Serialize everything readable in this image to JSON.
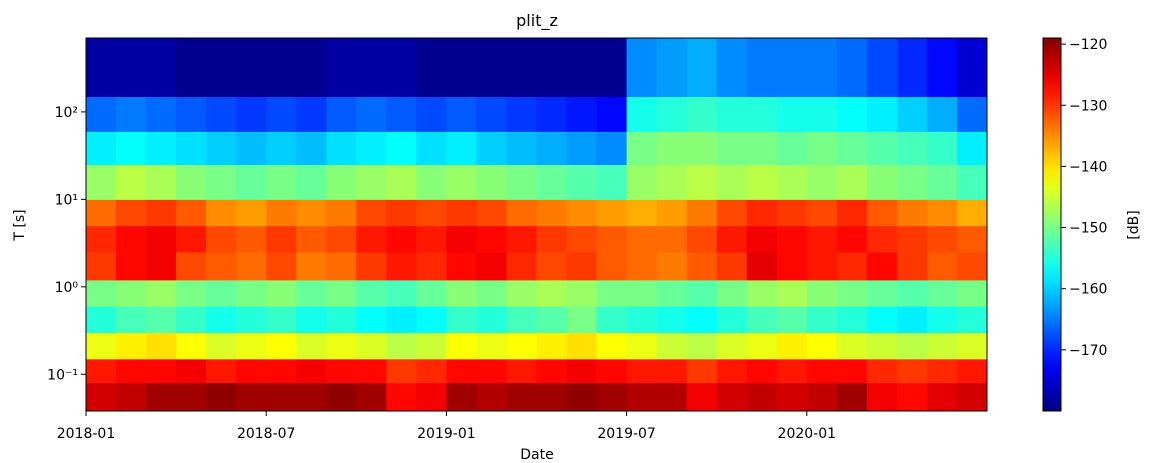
{
  "chart_data": {
    "type": "heatmap",
    "title": "plit_z",
    "x_label": "Date",
    "y_label": "T [s]",
    "x": [
      "2018-01",
      "2018-02",
      "2018-03",
      "2018-04",
      "2018-05",
      "2018-06",
      "2018-07",
      "2018-08",
      "2018-09",
      "2018-10",
      "2018-11",
      "2018-12",
      "2019-01",
      "2019-02",
      "2019-03",
      "2019-04",
      "2019-05",
      "2019-06",
      "2019-07",
      "2019-08",
      "2019-09",
      "2019-10",
      "2019-11",
      "2019-12",
      "2020-01",
      "2020-02",
      "2020-03",
      "2020-04",
      "2020-05",
      "2020-06"
    ],
    "y_edges": [
      0.038,
      0.08,
      0.15,
      0.3,
      0.6,
      1.2,
      2.5,
      5,
      10,
      25,
      60,
      150,
      700
    ],
    "values": [
      [
        -124,
        -123,
        -121,
        -121,
        -120,
        -121,
        -121,
        -121,
        -120,
        -121,
        -127,
        -126,
        -121,
        -122,
        -121,
        -121,
        -120,
        -121,
        -122,
        -122,
        -126,
        -124,
        -123,
        -124,
        -123,
        -121,
        -126,
        -127,
        -125,
        -124
      ],
      [
        -128,
        -127,
        -127,
        -126,
        -128,
        -127,
        -127,
        -126,
        -127,
        -127,
        -130,
        -129,
        -127,
        -127,
        -128,
        -127,
        -126,
        -127,
        -128,
        -128,
        -130,
        -128,
        -127,
        -128,
        -127,
        -127,
        -129,
        -130,
        -129,
        -128
      ],
      [
        -143,
        -141,
        -140,
        -142,
        -144,
        -143,
        -142,
        -144,
        -143,
        -144,
        -146,
        -145,
        -142,
        -143,
        -142,
        -141,
        -140,
        -142,
        -143,
        -145,
        -146,
        -144,
        -143,
        -141,
        -142,
        -144,
        -145,
        -146,
        -145,
        -144
      ],
      [
        -155,
        -153,
        -152,
        -154,
        -156,
        -155,
        -154,
        -156,
        -155,
        -157,
        -158,
        -157,
        -154,
        -155,
        -153,
        -152,
        -150,
        -154,
        -155,
        -156,
        -157,
        -155,
        -153,
        -152,
        -154,
        -155,
        -157,
        -158,
        -156,
        -155
      ],
      [
        -150,
        -149,
        -148,
        -150,
        -151,
        -150,
        -149,
        -151,
        -150,
        -152,
        -153,
        -151,
        -149,
        -150,
        -148,
        -147,
        -148,
        -150,
        -150,
        -151,
        -152,
        -150,
        -148,
        -147,
        -149,
        -150,
        -151,
        -152,
        -151,
        -150
      ],
      [
        -130,
        -127,
        -126,
        -131,
        -132,
        -133,
        -131,
        -134,
        -133,
        -130,
        -128,
        -129,
        -127,
        -126,
        -129,
        -131,
        -130,
        -132,
        -133,
        -134,
        -132,
        -130,
        -125,
        -127,
        -128,
        -129,
        -127,
        -130,
        -132,
        -131
      ],
      [
        -129,
        -127,
        -126,
        -128,
        -131,
        -132,
        -130,
        -132,
        -131,
        -128,
        -127,
        -128,
        -126,
        -127,
        -128,
        -130,
        -131,
        -132,
        -133,
        -133,
        -131,
        -128,
        -126,
        -127,
        -128,
        -127,
        -129,
        -130,
        -131,
        -132
      ],
      [
        -133,
        -131,
        -130,
        -132,
        -135,
        -136,
        -134,
        -135,
        -134,
        -131,
        -130,
        -131,
        -130,
        -131,
        -133,
        -134,
        -135,
        -136,
        -137,
        -136,
        -134,
        -131,
        -129,
        -130,
        -131,
        -129,
        -132,
        -134,
        -135,
        -137
      ],
      [
        -148,
        -146,
        -147,
        -149,
        -150,
        -151,
        -150,
        -151,
        -149,
        -148,
        -147,
        -149,
        -148,
        -149,
        -150,
        -151,
        -152,
        -153,
        -148,
        -147,
        -146,
        -147,
        -146,
        -147,
        -148,
        -147,
        -149,
        -150,
        -151,
        -153
      ],
      [
        -158,
        -157,
        -158,
        -159,
        -160,
        -161,
        -160,
        -161,
        -159,
        -158,
        -157,
        -159,
        -158,
        -160,
        -161,
        -162,
        -163,
        -164,
        -150,
        -149,
        -149,
        -150,
        -150,
        -151,
        -150,
        -151,
        -152,
        -153,
        -154,
        -158
      ],
      [
        -166,
        -165,
        -166,
        -167,
        -168,
        -169,
        -168,
        -169,
        -167,
        -166,
        -167,
        -168,
        -167,
        -168,
        -169,
        -170,
        -171,
        -172,
        -156,
        -155,
        -154,
        -155,
        -155,
        -156,
        -156,
        -157,
        -158,
        -160,
        -162,
        -166
      ],
      [
        -178,
        -178,
        -178,
        -179,
        -179,
        -179,
        -179,
        -179,
        -178,
        -178,
        -178,
        -179,
        -179,
        -179,
        -179,
        -179,
        -179,
        -179,
        -164,
        -163,
        -162,
        -164,
        -165,
        -165,
        -165,
        -166,
        -168,
        -170,
        -172,
        -175
      ]
    ],
    "xlim": [
      "2018-01",
      "2020-07"
    ],
    "xticks": [
      "2018-01",
      "2018-07",
      "2019-01",
      "2019-07",
      "2020-01"
    ],
    "ylim": [
      0.038,
      700
    ],
    "yscale": "log",
    "yticks": [
      {
        "value": 0.1,
        "label": "10⁻¹"
      },
      {
        "value": 1,
        "label": "10⁰"
      },
      {
        "value": 10,
        "label": "10¹"
      },
      {
        "value": 100,
        "label": "10²"
      }
    ],
    "colormap": "jet",
    "colorbar": {
      "label": "[dB]",
      "lim": [
        -180,
        -119
      ],
      "ticks": [
        {
          "value": -120,
          "label": "−120"
        },
        {
          "value": -130,
          "label": "−130"
        },
        {
          "value": -140,
          "label": "−140"
        },
        {
          "value": -150,
          "label": "−150"
        },
        {
          "value": -160,
          "label": "−160"
        },
        {
          "value": -170,
          "label": "−170"
        }
      ]
    }
  }
}
